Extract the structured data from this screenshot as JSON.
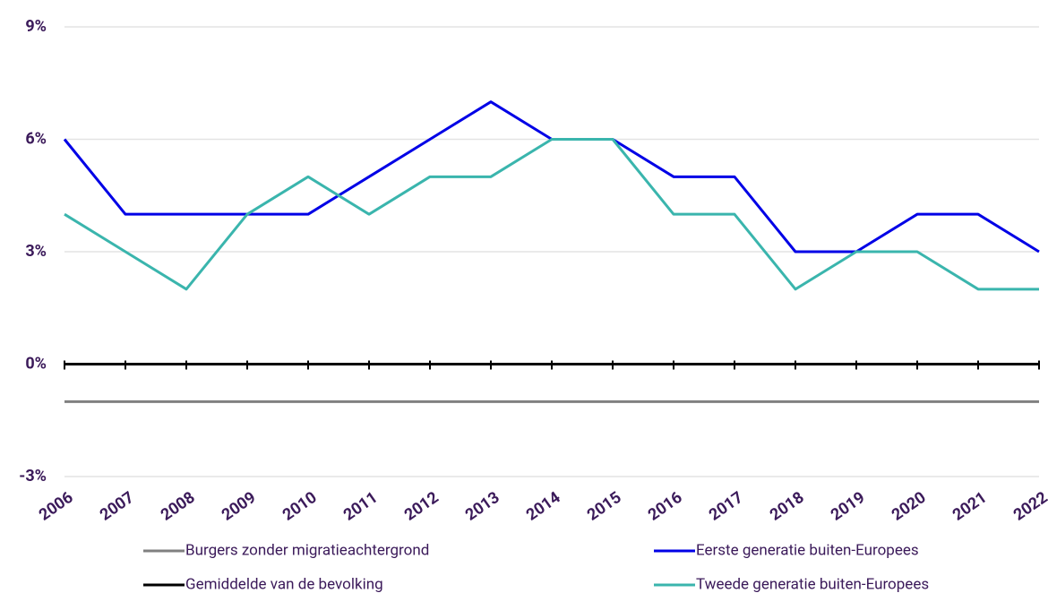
{
  "chart_data": {
    "type": "line",
    "categories": [
      "2006",
      "2007",
      "2008",
      "2009",
      "2010",
      "2011",
      "2012",
      "2013",
      "2014",
      "2015",
      "2016",
      "2017",
      "2018",
      "2019",
      "2020",
      "2021",
      "2022"
    ],
    "ylim": [
      -3,
      9
    ],
    "yticks": [
      {
        "value": -3,
        "label": "-3%"
      },
      {
        "value": 0,
        "label": "0%"
      },
      {
        "value": 3,
        "label": "3%"
      },
      {
        "value": 6,
        "label": "6%"
      },
      {
        "value": 9,
        "label": "9%"
      }
    ],
    "grid": true,
    "series": [
      {
        "name": "Burgers zonder migratieachtergrond",
        "color": "#808080",
        "values": [
          -1,
          -1,
          -1,
          -1,
          -1,
          -1,
          -1,
          -1,
          -1,
          -1,
          -1,
          -1,
          -1,
          -1,
          -1,
          -1,
          -1
        ]
      },
      {
        "name": "Eerste generatie buiten-Europees",
        "color": "#0000e6",
        "values": [
          6,
          4,
          4,
          4,
          4,
          5,
          6,
          7,
          6,
          6,
          5,
          5,
          3,
          3,
          4,
          4,
          3
        ]
      },
      {
        "name": "Gemiddelde van de bevolking",
        "color": "#000000",
        "values": [
          0,
          0,
          0,
          0,
          0,
          0,
          0,
          0,
          0,
          0,
          0,
          0,
          0,
          0,
          0,
          0,
          0
        ]
      },
      {
        "name": "Tweede generatie buiten-Europees",
        "color": "#3ab5ad",
        "values": [
          4,
          3,
          2,
          4,
          5,
          4,
          5,
          5,
          6,
          6,
          4,
          4,
          2,
          3,
          3,
          2,
          2
        ]
      }
    ]
  }
}
